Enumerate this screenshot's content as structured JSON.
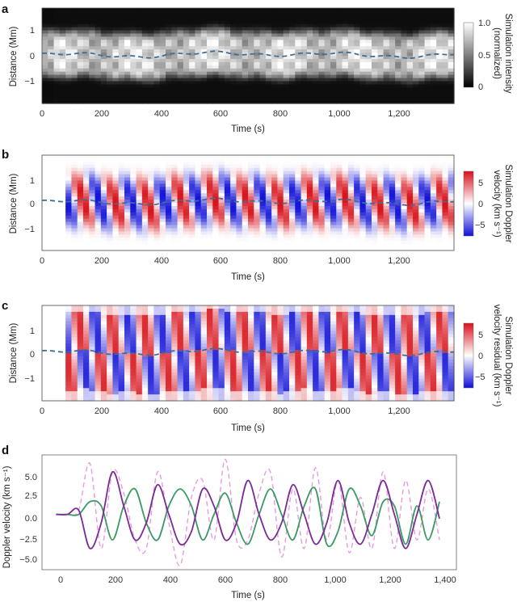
{
  "panels": [
    {
      "letter": "a",
      "ylabel": "Distance (Mm)",
      "xlabel": "Time (s)",
      "colorbar": {
        "title_line1": "Simulation intensity",
        "title_line2": "(normalized)",
        "ticks": [
          "1.0",
          "0.5",
          "0"
        ]
      },
      "xticks": [
        "0",
        "200",
        "400",
        "600",
        "800",
        "1,000",
        "1,200"
      ],
      "yticks": [
        "1",
        "0",
        "−1"
      ]
    },
    {
      "letter": "b",
      "ylabel": "Distance (Mm)",
      "xlabel": "Time (s)",
      "colorbar": {
        "title_line1": "Simulation Doppler",
        "title_line2": "velocity (km s⁻¹)",
        "ticks": [
          "5",
          "0",
          "−5"
        ]
      },
      "xticks": [
        "0",
        "200",
        "400",
        "600",
        "800",
        "1,000",
        "1,200"
      ],
      "yticks": [
        "1",
        "0",
        "−1"
      ]
    },
    {
      "letter": "c",
      "ylabel": "Distance (Mm)",
      "xlabel": "Time (s)",
      "colorbar": {
        "title_line1": "Simulation Doppler",
        "title_line2": "velocity residual (km s⁻¹)",
        "ticks": [
          "5",
          "0",
          "−5"
        ]
      },
      "xticks": [
        "0",
        "200",
        "400",
        "600",
        "800",
        "1,000",
        "1,200"
      ],
      "yticks": [
        "1",
        "0",
        "−1"
      ]
    },
    {
      "letter": "d",
      "ylabel": "Doppler velocity (km s⁻¹)",
      "xlabel": "Time (s)",
      "xticks": [
        "0",
        "200",
        "400",
        "600",
        "800",
        "1,000",
        "1,200",
        "1,400"
      ],
      "yticks": [
        "5.0",
        "2.5",
        "0.0",
        "−2.5",
        "−5.0"
      ]
    }
  ],
  "colors": {
    "dashed_axis_line": "#3d6e96",
    "purple": "#7b2a97",
    "green": "#3a9a62",
    "pink_dashed": "#e79ae0",
    "red": "#d7191c",
    "blue": "#1a1adb"
  },
  "chart_data": [
    {
      "type": "heatmap",
      "panel": "a",
      "x_range": [
        0,
        1380
      ],
      "y_range": [
        -2,
        1.9
      ],
      "colormap": "gray",
      "color_range": [
        0,
        1.0
      ],
      "dashed_line": "loop axis near 0 Mm"
    },
    {
      "type": "heatmap",
      "panel": "b",
      "x_range": [
        0,
        1380
      ],
      "y_range": [
        -2,
        1.9
      ],
      "colormap": "blue-white-red",
      "color_range": [
        -8,
        8
      ]
    },
    {
      "type": "heatmap",
      "panel": "c",
      "x_range": [
        0,
        1380
      ],
      "y_range": [
        -2,
        1.9
      ],
      "colormap": "blue-white-red",
      "color_range": [
        -8,
        8
      ]
    },
    {
      "type": "line",
      "panel": "d",
      "x_range": [
        -50,
        1420
      ],
      "y_range": [
        -6.5,
        7.0
      ],
      "x": [
        0,
        40,
        80,
        120,
        160,
        200,
        240,
        280,
        320,
        360,
        400,
        440,
        480,
        520,
        560,
        600,
        640,
        680,
        720,
        760,
        800,
        840,
        880,
        920,
        960,
        1000,
        1040,
        1080,
        1120,
        1160,
        1200,
        1240,
        1280,
        1320,
        1360
      ],
      "series": [
        {
          "color": "purple",
          "style": "solid",
          "values": [
            0,
            0,
            0.5,
            -4,
            -1,
            5,
            1,
            -3,
            -1,
            3.5,
            0,
            -3.5,
            -2,
            3,
            1,
            -3,
            -1,
            4,
            0,
            -3,
            -1,
            3.5,
            0,
            -3.5,
            -1,
            4,
            -1,
            -3.5,
            0,
            4,
            0,
            -4,
            0,
            4,
            -0.5
          ]
        },
        {
          "color": "green",
          "style": "solid",
          "values": [
            0,
            0,
            0,
            1.5,
            1,
            -3,
            1,
            3,
            -1,
            -3,
            1,
            3,
            1,
            -3,
            0,
            2.5,
            -1,
            -3.5,
            0,
            3,
            0,
            -3,
            1,
            3,
            -3.5,
            -2,
            3,
            1,
            -2.5,
            1.5,
            1,
            -3.5,
            1,
            -3,
            1.5
          ]
        },
        {
          "color": "pink_dashed",
          "style": "dashed",
          "values": [
            0,
            0,
            0.5,
            6,
            -4,
            5,
            2.5,
            -3,
            -4,
            5,
            -1,
            -6,
            2,
            4,
            -3,
            6.5,
            -3,
            -3,
            2.5,
            5,
            -5,
            3,
            -4,
            5.5,
            -3,
            4,
            -4.5,
            2,
            -4,
            5,
            -4,
            4,
            -3,
            3,
            -3
          ]
        }
      ]
    }
  ]
}
